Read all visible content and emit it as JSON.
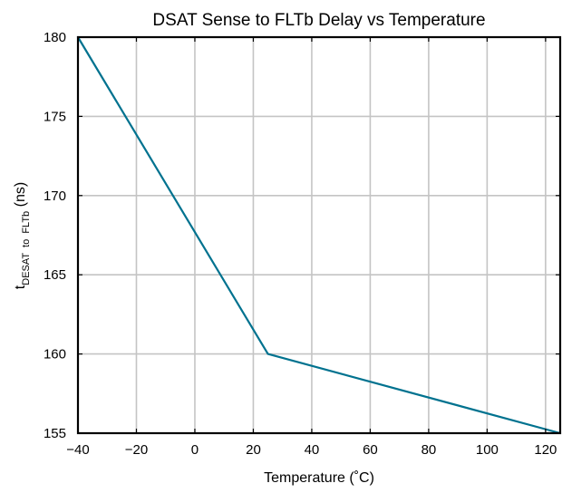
{
  "chart_data": {
    "type": "line",
    "title": "DSAT Sense to FLTb Delay vs Temperature",
    "xlabel": "Temperature (˚C)",
    "ylabel": {
      "main": "t",
      "subscript": "DESAT  to  FLTb",
      "suffix": " (ns)"
    },
    "xlim": [
      -40,
      125
    ],
    "ylim": [
      155,
      180
    ],
    "xticks": [
      -40,
      -20,
      0,
      20,
      40,
      60,
      80,
      100,
      120
    ],
    "xtick_labels": [
      "−40",
      "−20",
      "0",
      "20",
      "40",
      "60",
      "80",
      "100",
      "120"
    ],
    "yticks": [
      155,
      160,
      165,
      170,
      175,
      180
    ],
    "ytick_labels": [
      "155",
      "160",
      "165",
      "170",
      "175",
      "180"
    ],
    "grid": true,
    "series": [
      {
        "color": "#00728f",
        "x": [
          -40,
          25,
          125
        ],
        "y": [
          180,
          160,
          155
        ]
      }
    ]
  }
}
